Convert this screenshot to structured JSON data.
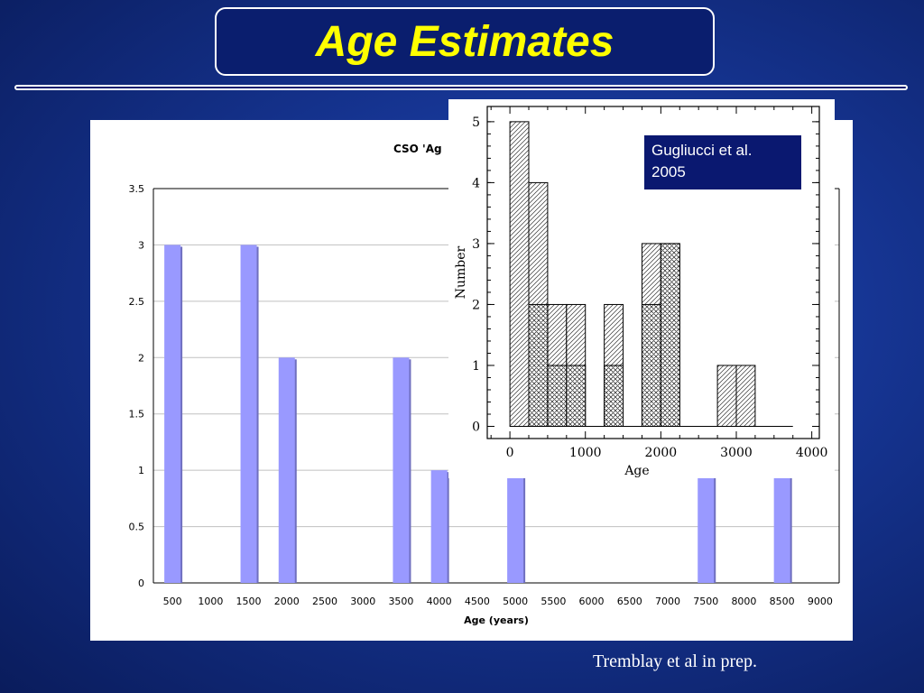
{
  "slide": {
    "title": "Age Estimates",
    "credit": "Tremblay et al in prep."
  },
  "inset_legend": {
    "line1": "Gugliucci et al.",
    "line2": "2005"
  },
  "chart_data": [
    {
      "type": "bar",
      "title": "CSO 'Ag",
      "xlabel": "Age (years)",
      "ylabel": "",
      "categories": [
        "500",
        "1000",
        "1500",
        "2000",
        "2500",
        "3000",
        "3500",
        "4000",
        "4500",
        "5000",
        "5500",
        "6000",
        "6500",
        "7000",
        "7500",
        "8000",
        "8500",
        "9000"
      ],
      "values": [
        3,
        0,
        3,
        2,
        0,
        0,
        2,
        1,
        0,
        1,
        0,
        0,
        0,
        0,
        1,
        0,
        1,
        0
      ],
      "ylim": [
        0,
        3.5
      ],
      "yticks": [
        "0",
        "0.5",
        "1",
        "1.5",
        "2",
        "2.5",
        "3",
        "3.5"
      ],
      "ytick_values": [
        0,
        0.5,
        1,
        1.5,
        2,
        2.5,
        3,
        3.5
      ],
      "grid": true,
      "colors": {
        "bar": "#9999ff",
        "bar_shadow": "#6f6fbf",
        "grid": "#c0c0c0"
      }
    },
    {
      "type": "bar",
      "title": "",
      "xlabel": "Age",
      "ylabel": "Number",
      "xlim": [
        -300,
        4100
      ],
      "ylim": [
        -0.2,
        5.25
      ],
      "xticks": [
        "0",
        "1000",
        "2000",
        "3000",
        "4000"
      ],
      "xtick_values": [
        0,
        1000,
        2000,
        3000,
        4000
      ],
      "yticks": [
        "0",
        "1",
        "2",
        "3",
        "4",
        "5"
      ],
      "ytick_values": [
        0,
        1,
        2,
        3,
        4,
        5
      ],
      "bin_width": 250,
      "series": [
        {
          "bins": [
            0,
            250,
            500,
            750,
            1000,
            1250,
            1500,
            1750,
            2000,
            2250,
            2500,
            2750,
            3000,
            3250,
            3500,
            3750
          ],
          "values": [
            5,
            4,
            2,
            2,
            0,
            2,
            0,
            3,
            3,
            0,
            0,
            1,
            1,
            0,
            0,
            0
          ],
          "hatch": "diagonal"
        },
        {
          "bins": [
            250,
            500,
            750,
            1250,
            1750,
            2000
          ],
          "values": [
            2,
            1,
            1,
            1,
            2,
            3
          ],
          "hatch": "cross"
        }
      ]
    }
  ]
}
